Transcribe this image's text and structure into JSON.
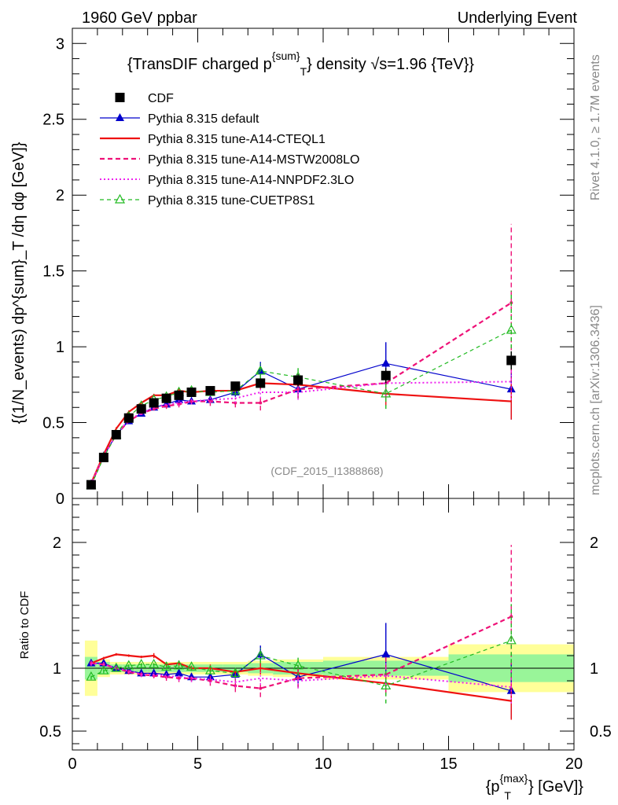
{
  "header": {
    "left": "1960 GeV ppbar",
    "right": "Underlying Event"
  },
  "side_text": {
    "rivet": "Rivet 4.1.0, ≥ 1.7M events",
    "mcplots": "mcplots.cern.ch [arXiv:1306.3436]"
  },
  "watermark": "(CDF_2015_I1388868)",
  "title": "{TransDIF charged p",
  "title_sup": "{sum}",
  "title_sub": "T",
  "title_end": "} density √s=1.96 {TeV}}",
  "ylabel": "{(1/N_events) dp^{sum}_T /dη dφ [GeV]}",
  "ratio_ylabel": "Ratio to CDF",
  "xlabel_pre": "{p",
  "xlabel_sup": "{max}",
  "xlabel_sub": "T",
  "xlabel_post": "} [GeV]}",
  "colors": {
    "cdf": "#000000",
    "default": "#0000cc",
    "cteql1": "#ee1111",
    "mstw": "#ee1177",
    "nnpdf": "#ee22ee",
    "cuetp8s1": "#22bb22",
    "band_inner": "#99f599",
    "band_outer": "#ffff99"
  },
  "chart_data": [
    {
      "type": "line",
      "panel": "main",
      "xlim": [
        0,
        20
      ],
      "ylim": [
        0,
        3.1
      ],
      "x_ticks": [
        "0",
        "5",
        "10",
        "15",
        "20"
      ],
      "y_ticks": [
        "0",
        "0.5",
        "1",
        "1.5",
        "2",
        "2.5",
        "3"
      ],
      "legend_position": "top-left",
      "series": [
        {
          "name": "CDF",
          "style": "square-marker",
          "x": [
            0.75,
            1.25,
            1.75,
            2.25,
            2.75,
            3.25,
            3.75,
            4.25,
            4.75,
            5.5,
            6.5,
            7.5,
            9.0,
            12.5,
            17.5
          ],
          "y": [
            0.09,
            0.27,
            0.42,
            0.53,
            0.59,
            0.63,
            0.66,
            0.68,
            0.7,
            0.71,
            0.74,
            0.76,
            0.78,
            0.81,
            0.91
          ],
          "yerr": [
            0.01,
            0.01,
            0.01,
            0.01,
            0.01,
            0.01,
            0.01,
            0.01,
            0.01,
            0.02,
            0.02,
            0.03,
            0.04,
            0.05,
            0.06
          ]
        },
        {
          "name": "Pythia 8.315 default",
          "style": "solid-triangle",
          "x": [
            0.75,
            1.25,
            1.75,
            2.25,
            2.75,
            3.25,
            3.75,
            4.25,
            4.75,
            5.5,
            6.5,
            7.5,
            9.0,
            12.5,
            17.5
          ],
          "y": [
            0.095,
            0.28,
            0.42,
            0.51,
            0.56,
            0.6,
            0.62,
            0.65,
            0.64,
            0.65,
            0.7,
            0.84,
            0.72,
            0.89,
            0.72
          ],
          "yerr": [
            0.005,
            0.01,
            0.01,
            0.01,
            0.01,
            0.01,
            0.01,
            0.02,
            0.02,
            0.02,
            0.03,
            0.06,
            0.06,
            0.14,
            0.2
          ]
        },
        {
          "name": "Pythia 8.315 tune-A14-CTEQL1",
          "style": "solid-line",
          "x": [
            0.75,
            1.25,
            1.75,
            2.25,
            2.75,
            3.25,
            3.75,
            4.25,
            4.75,
            5.5,
            6.5,
            7.5,
            9.0,
            12.5,
            17.5
          ],
          "y": [
            0.1,
            0.29,
            0.46,
            0.57,
            0.63,
            0.68,
            0.68,
            0.71,
            0.7,
            0.71,
            0.71,
            0.76,
            0.75,
            0.69,
            0.64
          ],
          "yerr": [
            0.005,
            0.01,
            0.01,
            0.01,
            0.01,
            0.01,
            0.01,
            0.02,
            0.02,
            0.02,
            0.03,
            0.04,
            0.05,
            0.08,
            0.12
          ]
        },
        {
          "name": "Pythia 8.315 tune-A14-MSTW2008LO",
          "style": "dashed-line",
          "x": [
            0.75,
            1.25,
            1.75,
            2.25,
            2.75,
            3.25,
            3.75,
            4.25,
            4.75,
            5.5,
            6.5,
            7.5,
            9.0,
            12.5,
            17.5
          ],
          "y": [
            0.095,
            0.28,
            0.42,
            0.51,
            0.56,
            0.59,
            0.61,
            0.62,
            0.64,
            0.64,
            0.63,
            0.63,
            0.72,
            0.76,
            1.29
          ],
          "yerr": [
            0.005,
            0.01,
            0.01,
            0.01,
            0.01,
            0.01,
            0.02,
            0.02,
            0.02,
            0.03,
            0.03,
            0.05,
            0.06,
            0.1,
            0.52
          ]
        },
        {
          "name": "Pythia 8.315 tune-A14-NNPDF2.3LO",
          "style": "dotted-line",
          "x": [
            0.75,
            1.25,
            1.75,
            2.25,
            2.75,
            3.25,
            3.75,
            4.25,
            4.75,
            5.5,
            6.5,
            7.5,
            9.0,
            12.5,
            17.5
          ],
          "y": [
            0.095,
            0.28,
            0.42,
            0.52,
            0.56,
            0.6,
            0.62,
            0.63,
            0.64,
            0.65,
            0.66,
            0.7,
            0.7,
            0.76,
            0.77
          ],
          "yerr": [
            0.005,
            0.01,
            0.01,
            0.01,
            0.01,
            0.01,
            0.01,
            0.02,
            0.02,
            0.02,
            0.03,
            0.04,
            0.05,
            0.08,
            0.12
          ]
        },
        {
          "name": "Pythia 8.315 tune-CUETP8S1",
          "style": "dashed-open-triangle",
          "x": [
            0.75,
            1.25,
            1.75,
            2.25,
            2.75,
            3.25,
            3.75,
            4.25,
            4.75,
            5.5,
            6.5,
            7.5,
            9.0,
            12.5,
            17.5
          ],
          "y": [
            0.085,
            0.27,
            0.42,
            0.54,
            0.61,
            0.65,
            0.67,
            0.7,
            0.71,
            0.7,
            0.71,
            0.84,
            0.8,
            0.69,
            1.11
          ],
          "yerr": [
            0.005,
            0.01,
            0.01,
            0.01,
            0.01,
            0.01,
            0.01,
            0.02,
            0.02,
            0.02,
            0.03,
            0.05,
            0.06,
            0.1,
            0.26
          ]
        }
      ]
    },
    {
      "type": "line",
      "panel": "ratio",
      "xlim": [
        0,
        20
      ],
      "ylim": [
        0.35,
        2.35
      ],
      "x_ticks": [
        "0",
        "5",
        "10",
        "15",
        "20"
      ],
      "y_ticks": [
        "0.5",
        "1",
        "2"
      ],
      "bands": {
        "bin_edges": [
          0.5,
          1.0,
          1.5,
          2.0,
          2.5,
          3.0,
          3.5,
          4.0,
          4.5,
          5.0,
          6.0,
          7.0,
          8.0,
          10.0,
          15.0,
          20.0
        ],
        "inner": [
          0.09,
          0.05,
          0.03,
          0.03,
          0.03,
          0.03,
          0.03,
          0.03,
          0.03,
          0.03,
          0.03,
          0.04,
          0.05,
          0.06,
          0.11
        ],
        "outer": [
          0.22,
          0.07,
          0.05,
          0.05,
          0.05,
          0.05,
          0.05,
          0.05,
          0.05,
          0.05,
          0.05,
          0.06,
          0.07,
          0.09,
          0.19
        ]
      },
      "series": [
        {
          "name": "CDF",
          "x": [
            0.75,
            1.25,
            1.75,
            2.25,
            2.75,
            3.25,
            3.75,
            4.25,
            4.75,
            5.5,
            6.5,
            7.5,
            9.0,
            12.5,
            17.5
          ],
          "y": [
            1,
            1,
            1,
            1,
            1,
            1,
            1,
            1,
            1,
            1,
            1,
            1,
            1,
            1,
            1
          ]
        },
        {
          "name": "Pythia 8.315 default",
          "x": [
            0.75,
            1.25,
            1.75,
            2.25,
            2.75,
            3.25,
            3.75,
            4.25,
            4.75,
            5.5,
            6.5,
            7.5,
            9.0,
            12.5,
            17.5
          ],
          "y": [
            1.04,
            1.04,
            1.0,
            0.98,
            0.96,
            0.96,
            0.95,
            0.96,
            0.93,
            0.93,
            0.95,
            1.11,
            0.93,
            1.11,
            0.82
          ],
          "yerr": [
            0.02,
            0.02,
            0.02,
            0.02,
            0.02,
            0.02,
            0.02,
            0.03,
            0.03,
            0.03,
            0.04,
            0.07,
            0.08,
            0.25,
            0.22
          ]
        },
        {
          "name": "Pythia 8.315 tune-A14-CTEQL1",
          "x": [
            0.75,
            1.25,
            1.75,
            2.25,
            2.75,
            3.25,
            3.75,
            4.25,
            4.75,
            5.5,
            6.5,
            7.5,
            9.0,
            12.5,
            17.5
          ],
          "y": [
            1.04,
            1.08,
            1.11,
            1.1,
            1.09,
            1.1,
            1.03,
            1.04,
            1.0,
            1.0,
            0.97,
            1.0,
            0.96,
            0.88,
            0.74
          ],
          "yerr": [
            0.01,
            0.01,
            0.01,
            0.01,
            0.01,
            0.02,
            0.02,
            0.02,
            0.02,
            0.03,
            0.03,
            0.05,
            0.06,
            0.09,
            0.15
          ]
        },
        {
          "name": "Pythia 8.315 tune-A14-MSTW2008LO",
          "x": [
            0.75,
            1.25,
            1.75,
            2.25,
            2.75,
            3.25,
            3.75,
            4.25,
            4.75,
            5.5,
            6.5,
            7.5,
            9.0,
            12.5,
            17.5
          ],
          "y": [
            1.04,
            1.03,
            1.0,
            0.97,
            0.95,
            0.94,
            0.93,
            0.92,
            0.92,
            0.9,
            0.86,
            0.84,
            0.92,
            0.95,
            1.41
          ],
          "yerr": [
            0.02,
            0.02,
            0.02,
            0.02,
            0.02,
            0.02,
            0.03,
            0.03,
            0.03,
            0.04,
            0.05,
            0.07,
            0.08,
            0.15,
            0.57
          ]
        },
        {
          "name": "Pythia 8.315 tune-A14-NNPDF2.3LO",
          "x": [
            0.75,
            1.25,
            1.75,
            2.25,
            2.75,
            3.25,
            3.75,
            4.25,
            4.75,
            5.5,
            6.5,
            7.5,
            9.0,
            12.5,
            17.5
          ],
          "y": [
            1.04,
            1.03,
            1.0,
            0.98,
            0.95,
            0.95,
            0.94,
            0.93,
            0.92,
            0.91,
            0.89,
            0.92,
            0.9,
            0.94,
            0.85
          ],
          "yerr": [
            0.02,
            0.02,
            0.02,
            0.02,
            0.02,
            0.02,
            0.02,
            0.03,
            0.03,
            0.03,
            0.04,
            0.05,
            0.06,
            0.1,
            0.13
          ]
        },
        {
          "name": "Pythia 8.315 tune-CUETP8S1",
          "x": [
            0.75,
            1.25,
            1.75,
            2.25,
            2.75,
            3.25,
            3.75,
            4.25,
            4.75,
            5.5,
            6.5,
            7.5,
            9.0,
            12.5,
            17.5
          ],
          "y": [
            0.93,
            0.98,
            1.0,
            1.02,
            1.03,
            1.03,
            1.01,
            1.02,
            1.01,
            0.98,
            0.96,
            1.1,
            1.02,
            0.86,
            1.22
          ],
          "yerr": [
            0.02,
            0.02,
            0.02,
            0.02,
            0.02,
            0.02,
            0.02,
            0.03,
            0.03,
            0.03,
            0.04,
            0.06,
            0.08,
            0.14,
            0.29
          ]
        }
      ]
    }
  ]
}
